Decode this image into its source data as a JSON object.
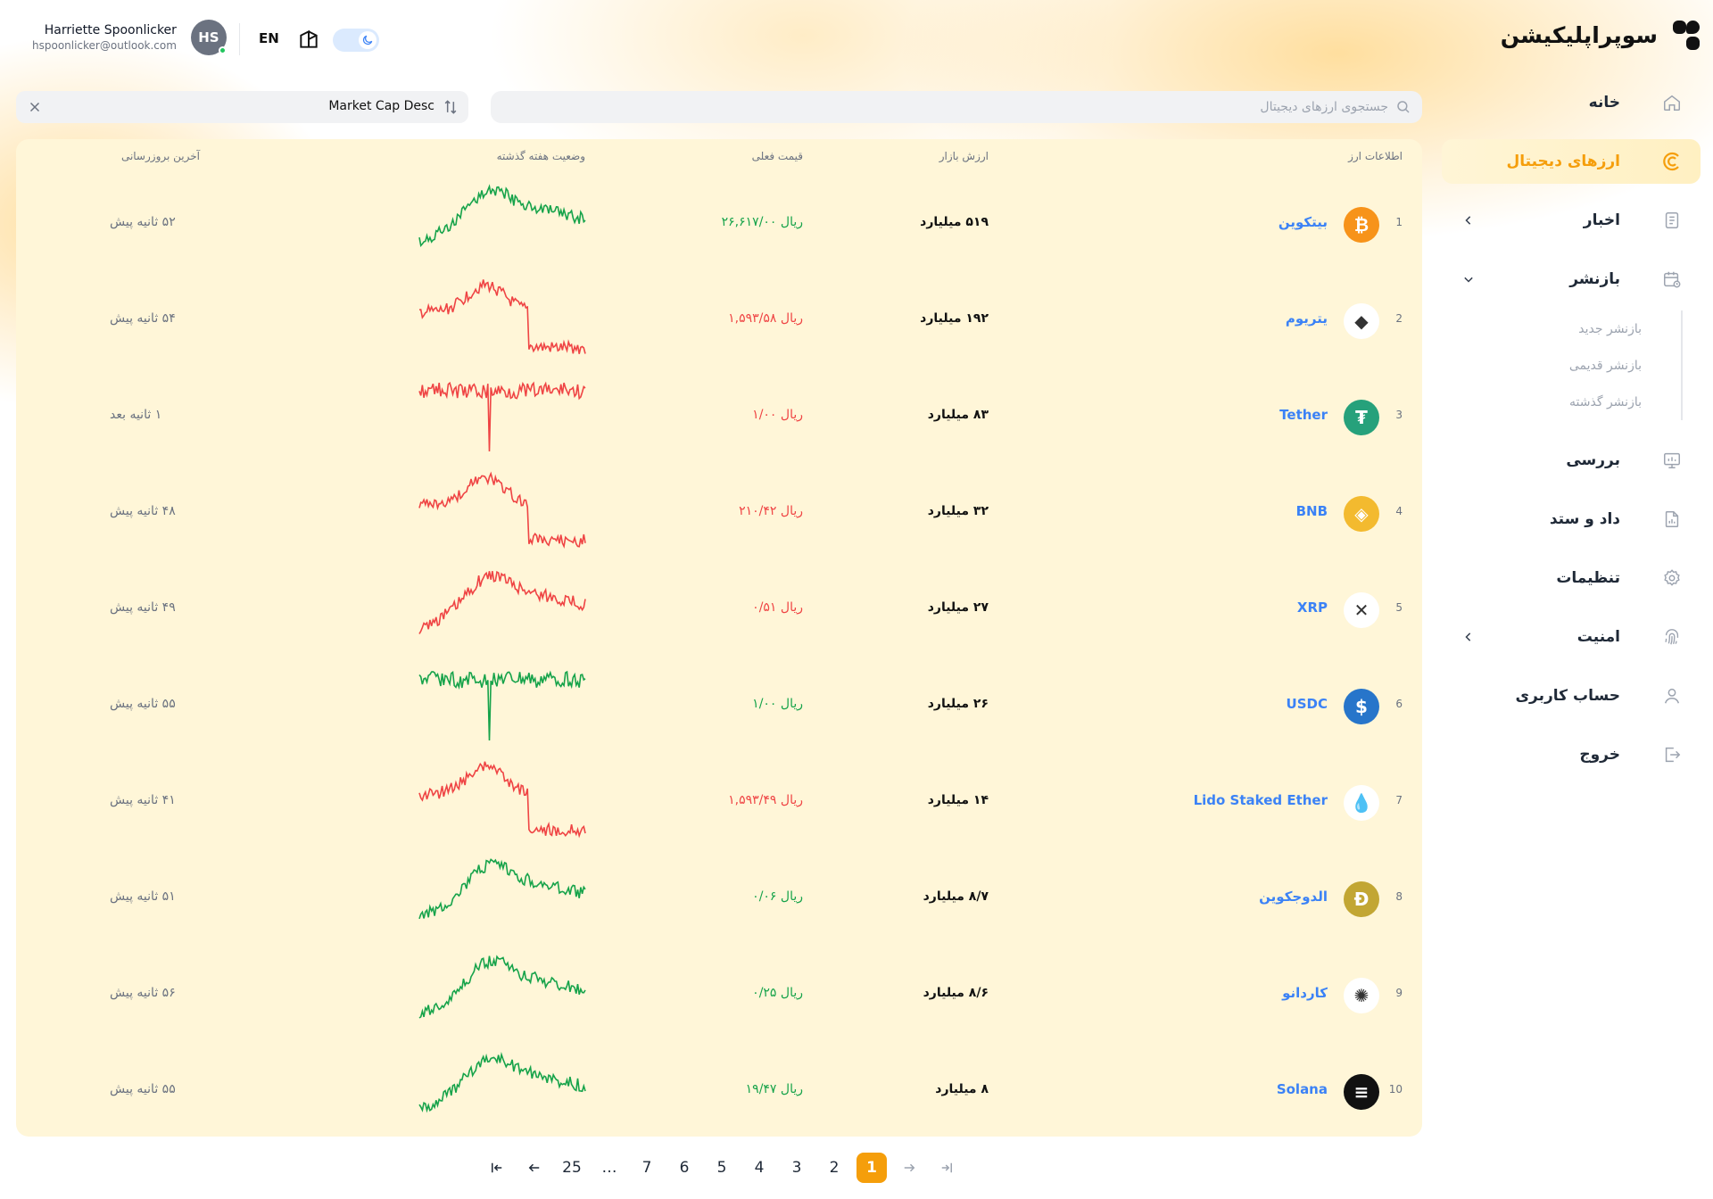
{
  "app": {
    "brand": "سوپراپلیکیشن"
  },
  "header": {
    "user_name": "Harriette Spoonlicker",
    "user_email": "hspoonlicker@outlook.com",
    "avatar_initials": "HS",
    "language": "EN"
  },
  "sidebar": {
    "items": [
      {
        "label": "خانه",
        "icon": "home-icon"
      },
      {
        "label": "ارزهای دیجیتال",
        "icon": "crypto-icon",
        "active": true
      },
      {
        "label": "اخبار",
        "icon": "news-icon",
        "chevron": "left"
      },
      {
        "label": "بازنشر",
        "icon": "calendar-icon",
        "chevron": "down"
      },
      {
        "label": "بررسی",
        "icon": "monitor-icon"
      },
      {
        "label": "داد و ستد",
        "icon": "file-chart-icon"
      },
      {
        "label": "تنظیمات",
        "icon": "gear-icon"
      },
      {
        "label": "امنیت",
        "icon": "fingerprint-icon",
        "chevron": "left"
      },
      {
        "label": "حساب کاربری",
        "icon": "user-icon"
      },
      {
        "label": "خروج",
        "icon": "logout-icon"
      }
    ],
    "subitems": [
      "بازنشر جدید",
      "بازنشر قدیمی",
      "بازنشر گذشته"
    ]
  },
  "filters": {
    "sort_value": "Market Cap Desc",
    "search_placeholder": "جستجوی ارزهای دیجیتال"
  },
  "table": {
    "headers": {
      "info": "اطلاعات ارز",
      "market_cap": "ارزش بازار",
      "price": "قیمت فعلی",
      "week": "وضعیت هفته گذشته",
      "updated": "آخرین بروزرسانی"
    },
    "rows": [
      {
        "rank": "1",
        "name": "بیتکوین",
        "icon": "bitcoin-icon",
        "icon_color": "#f7931a",
        "glyph": "₿",
        "market_cap": "۵۱۹ میلیارد",
        "price": "ریال ۲۶,۶۱۷/۰۰",
        "trend": "up",
        "updated": "۵۲ ثانیه پیش"
      },
      {
        "rank": "2",
        "name": "یتریوم",
        "icon": "ethereum-icon",
        "icon_color": "#ffffff",
        "glyph": "◆",
        "market_cap": "۱۹۲ میلیارد",
        "price": "ریال ۱,۵۹۳/۵۸",
        "trend": "down",
        "updated": "۵۴ ثانیه پیش"
      },
      {
        "rank": "3",
        "name": "Tether",
        "icon": "tether-icon",
        "icon_color": "#26a17b",
        "glyph": "₮",
        "market_cap": "۸۳ میلیارد",
        "price": "ریال ۱/۰۰",
        "trend": "down",
        "updated": "۱ ثانیه بعد"
      },
      {
        "rank": "4",
        "name": "BNB",
        "icon": "bnb-icon",
        "icon_color": "#f3ba2f",
        "glyph": "◈",
        "market_cap": "۳۲ میلیارد",
        "price": "ریال ۲۱۰/۴۲",
        "trend": "down",
        "updated": "۴۸ ثانیه پیش"
      },
      {
        "rank": "5",
        "name": "XRP",
        "icon": "xrp-icon",
        "icon_color": "#ffffff",
        "glyph": "✕",
        "market_cap": "۲۷ میلیارد",
        "price": "ریال ۰/۵۱",
        "trend": "down",
        "updated": "۴۹ ثانیه پیش"
      },
      {
        "rank": "6",
        "name": "USDC",
        "icon": "usdc-icon",
        "icon_color": "#2775ca",
        "glyph": "$",
        "market_cap": "۲۶ میلیارد",
        "price": "ریال ۱/۰۰",
        "trend": "up",
        "updated": "۵۵ ثانیه پیش"
      },
      {
        "rank": "7",
        "name": "Lido Staked Ether",
        "icon": "lido-icon",
        "icon_color": "#ffffff",
        "glyph": "💧",
        "market_cap": "۱۴ میلیارد",
        "price": "ریال ۱,۵۹۳/۴۹",
        "trend": "down",
        "updated": "۴۱ ثانیه پیش"
      },
      {
        "rank": "8",
        "name": "الدوجکوین",
        "icon": "dogecoin-icon",
        "icon_color": "#c2a633",
        "glyph": "Ð",
        "market_cap": "۸/۷ میلیارد",
        "price": "ریال ۰/۰۶",
        "trend": "up",
        "updated": "۵۱ ثانیه پیش"
      },
      {
        "rank": "9",
        "name": "کاردانو",
        "icon": "cardano-icon",
        "icon_color": "#ffffff",
        "glyph": "✺",
        "market_cap": "۸/۶ میلیارد",
        "price": "ریال ۰/۲۵",
        "trend": "up",
        "updated": "۵۶ ثانیه پیش"
      },
      {
        "rank": "10",
        "name": "Solana",
        "icon": "solana-icon",
        "icon_color": "#111111",
        "glyph": "≡",
        "market_cap": "۸ میلیارد",
        "price": "ریال ۱۹/۴۷",
        "trend": "up",
        "updated": "۵۵ ثانیه پیش"
      }
    ]
  },
  "pagination": {
    "pages": [
      "1",
      "2",
      "3",
      "4",
      "5",
      "6",
      "7",
      "…",
      "25"
    ],
    "current": "1"
  },
  "colors": {
    "accent": "#f59e0b",
    "up": "#16a34a",
    "down": "#ef4444",
    "link": "#3b82f6"
  }
}
